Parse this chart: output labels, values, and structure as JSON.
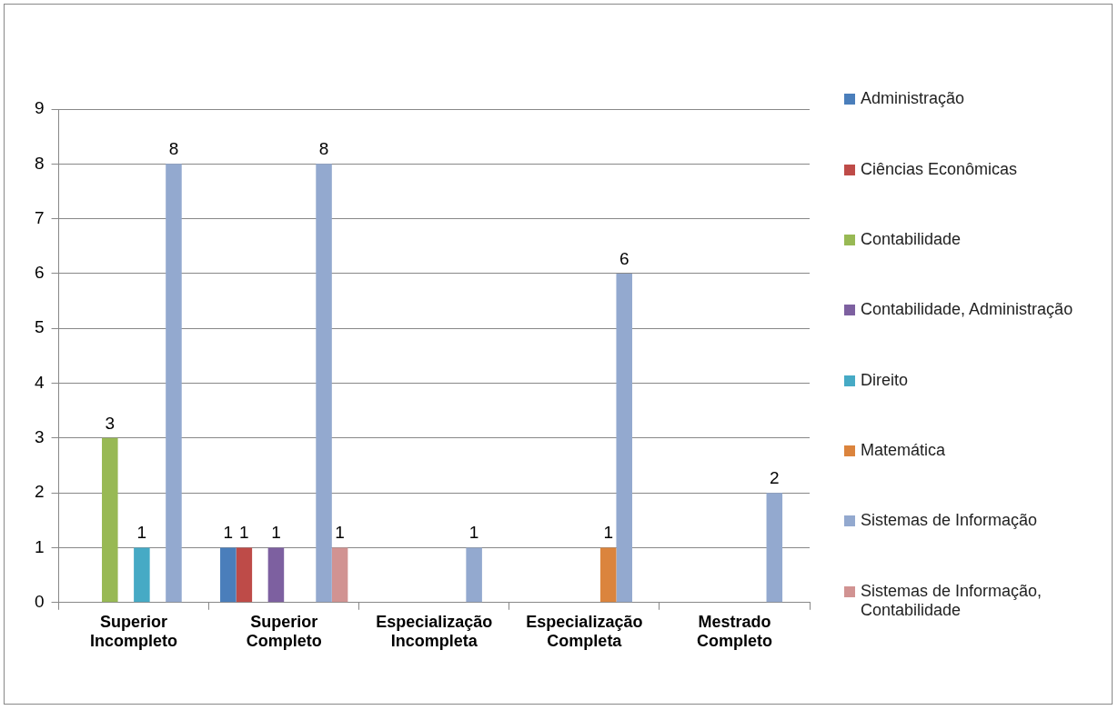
{
  "chart_data": {
    "type": "bar",
    "categories": [
      "Superior Incompleto",
      "Superior Completo",
      "Especialização Incompleta",
      "Especialização Completa",
      "Mestrado Completo"
    ],
    "series": [
      {
        "name": "Administração",
        "color": "#4a7ebb",
        "values": [
          null,
          1,
          null,
          null,
          null
        ]
      },
      {
        "name": "Ciências Econômicas",
        "color": "#be4b48",
        "values": [
          null,
          1,
          null,
          null,
          null
        ]
      },
      {
        "name": "Contabilidade",
        "color": "#98b954",
        "values": [
          3,
          null,
          null,
          null,
          null
        ]
      },
      {
        "name": "Contabilidade, Administração",
        "color": "#7d60a0",
        "values": [
          null,
          1,
          null,
          null,
          null
        ]
      },
      {
        "name": "Direito",
        "color": "#46aac5",
        "values": [
          1,
          null,
          null,
          null,
          null
        ]
      },
      {
        "name": "Matemática",
        "color": "#db843d",
        "values": [
          null,
          null,
          null,
          1,
          null
        ]
      },
      {
        "name": "Sistemas de Informação",
        "color": "#93a9cf",
        "values": [
          8,
          8,
          1,
          6,
          2
        ]
      },
      {
        "name": "Sistemas de Informação, Contabilidade",
        "color": "#d19392",
        "values": [
          null,
          1,
          null,
          null,
          null
        ]
      }
    ],
    "ylim": [
      0,
      9
    ],
    "yticks": [
      0,
      1,
      2,
      3,
      4,
      5,
      6,
      7,
      8,
      9
    ],
    "grid": "y",
    "legend": "right",
    "data_labels": true
  }
}
